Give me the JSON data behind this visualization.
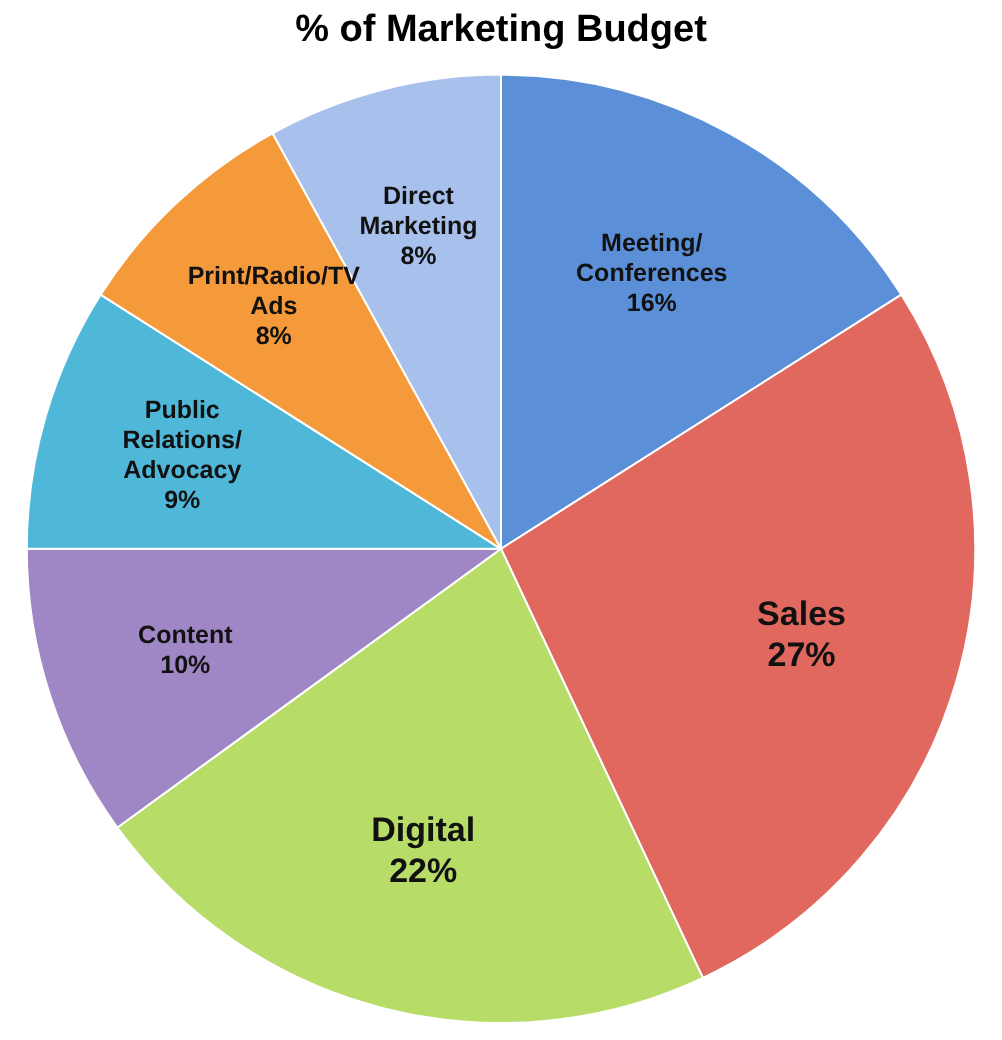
{
  "chart_data": {
    "type": "pie",
    "title": "% of Marketing Budget",
    "categories": [
      "Meeting/Conferences",
      "Sales",
      "Digital",
      "Content",
      "Public Relations/Advocacy",
      "Print/Radio/TV Ads",
      "Direct Marketing"
    ],
    "values": [
      16,
      27,
      22,
      10,
      9,
      8,
      8
    ],
    "colors": [
      "#5b8fd8",
      "#e0685e",
      "#b8dc68",
      "#9f86c4",
      "#4fb8d8",
      "#f59a3a",
      "#a8c0ec"
    ],
    "value_labels": [
      "16%",
      "27%",
      "22%",
      "10%",
      "9%",
      "8%",
      "8%"
    ],
    "legend": false
  }
}
